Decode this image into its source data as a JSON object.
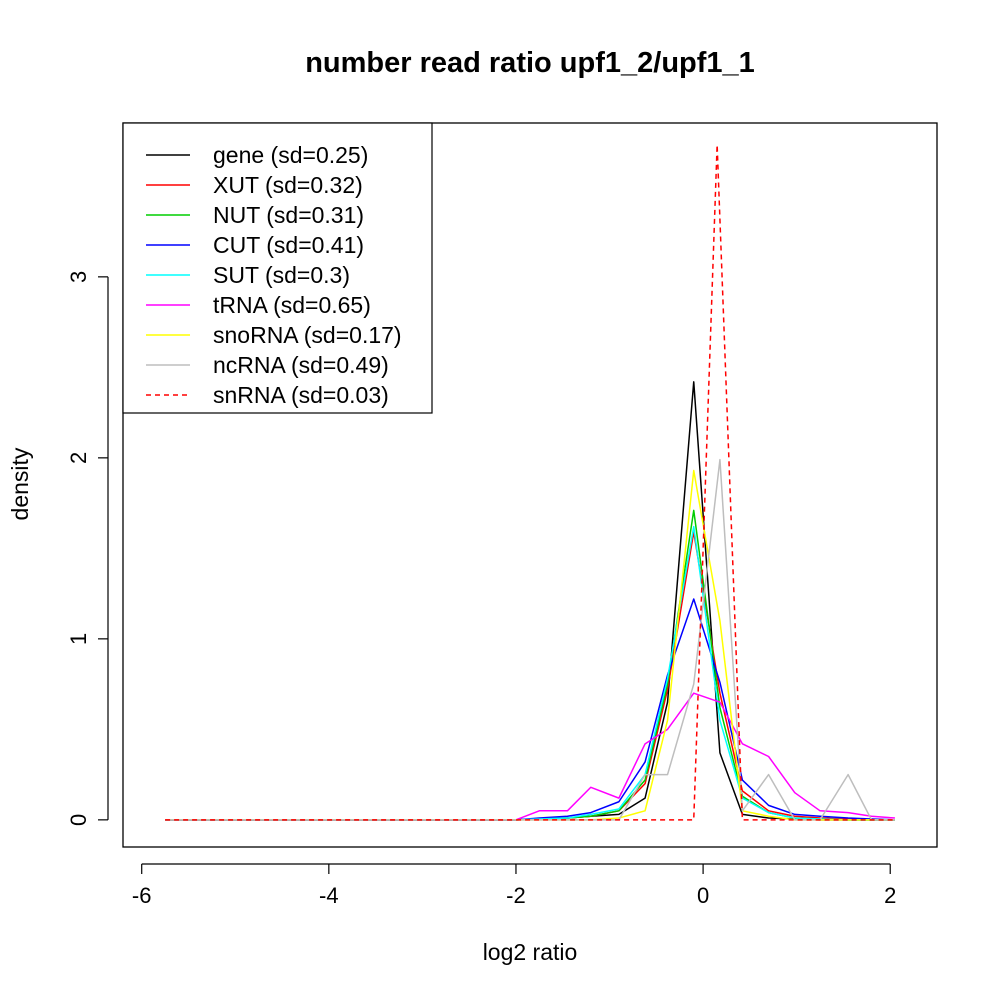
{
  "chart_data": {
    "type": "line",
    "title": "number read ratio upf1_2/upf1_1",
    "xlabel": "log2 ratio",
    "ylabel": "density",
    "xlim": [
      -6.2,
      2.5
    ],
    "ylim": [
      -0.15,
      3.85
    ],
    "xticks": [
      -6,
      -4,
      -2,
      0,
      2
    ],
    "xtick_labels": [
      "-6",
      "-4",
      "-2",
      "0",
      "2"
    ],
    "yticks": [
      0,
      1,
      2,
      3
    ],
    "ytick_labels": [
      "0",
      "1",
      "2",
      "3"
    ],
    "legend_position": "top-left",
    "grid": false,
    "series": [
      {
        "name": "gene",
        "label": "gene (sd=0.25)",
        "color": "#000000",
        "dashed": false,
        "x": [
          -5.75,
          -2.0,
          -1.75,
          -1.45,
          -1.2,
          -0.9,
          -0.62,
          -0.38,
          -0.1,
          0.18,
          0.42,
          0.7,
          0.98,
          1.25,
          1.55,
          1.8,
          2.05
        ],
        "y": [
          0,
          0,
          0.005,
          0.01,
          0.02,
          0.03,
          0.12,
          0.65,
          2.42,
          0.37,
          0.03,
          0.01,
          0.005,
          0,
          0,
          0,
          0
        ]
      },
      {
        "name": "XUT",
        "label": "XUT (sd=0.32)",
        "color": "#ff0000",
        "dashed": false,
        "x": [
          -5.75,
          -2.0,
          -1.75,
          -1.45,
          -1.2,
          -0.9,
          -0.62,
          -0.38,
          -0.1,
          0.18,
          0.42,
          0.7,
          0.98,
          1.25,
          1.55,
          1.8,
          2.05
        ],
        "y": [
          0,
          0,
          0.005,
          0.01,
          0.02,
          0.05,
          0.2,
          0.72,
          1.59,
          0.7,
          0.16,
          0.05,
          0.02,
          0.01,
          0.005,
          0,
          0
        ]
      },
      {
        "name": "NUT",
        "label": "NUT (sd=0.31)",
        "color": "#00cd00",
        "dashed": false,
        "x": [
          -5.75,
          -2.0,
          -1.75,
          -1.45,
          -1.2,
          -0.9,
          -0.62,
          -0.38,
          -0.1,
          0.18,
          0.42,
          0.7,
          0.98,
          1.25,
          1.55,
          1.8,
          2.05
        ],
        "y": [
          0,
          0,
          0.005,
          0.01,
          0.02,
          0.05,
          0.22,
          0.75,
          1.71,
          0.62,
          0.13,
          0.04,
          0.01,
          0.005,
          0,
          0,
          0
        ]
      },
      {
        "name": "CUT",
        "label": "CUT (sd=0.41)",
        "color": "#0000ff",
        "dashed": false,
        "x": [
          -5.75,
          -2.0,
          -1.75,
          -1.45,
          -1.2,
          -0.9,
          -0.62,
          -0.38,
          -0.1,
          0.18,
          0.42,
          0.7,
          0.98,
          1.25,
          1.55,
          1.8,
          2.05
        ],
        "y": [
          0,
          0,
          0.01,
          0.02,
          0.04,
          0.1,
          0.32,
          0.8,
          1.22,
          0.76,
          0.22,
          0.08,
          0.03,
          0.02,
          0.01,
          0.005,
          0
        ]
      },
      {
        "name": "SUT",
        "label": "SUT (sd=0.3)",
        "color": "#00ffff",
        "dashed": false,
        "x": [
          -5.75,
          -2.0,
          -1.75,
          -1.45,
          -1.2,
          -0.9,
          -0.62,
          -0.38,
          -0.1,
          0.18,
          0.42,
          0.7,
          0.98,
          1.25,
          1.55,
          1.8,
          2.05
        ],
        "y": [
          0,
          0,
          0.005,
          0.01,
          0.03,
          0.06,
          0.25,
          0.78,
          1.62,
          0.55,
          0.12,
          0.04,
          0.01,
          0.005,
          0,
          0,
          0
        ]
      },
      {
        "name": "tRNA",
        "label": "tRNA (sd=0.65)",
        "color": "#ff00ff",
        "dashed": false,
        "x": [
          -5.75,
          -2.0,
          -1.75,
          -1.45,
          -1.2,
          -0.9,
          -0.62,
          -0.38,
          -0.1,
          0.18,
          0.42,
          0.7,
          0.98,
          1.25,
          1.55,
          1.8,
          2.05
        ],
        "y": [
          0,
          0,
          0.05,
          0.05,
          0.18,
          0.12,
          0.42,
          0.5,
          0.7,
          0.65,
          0.42,
          0.35,
          0.15,
          0.05,
          0.04,
          0.02,
          0.01
        ]
      },
      {
        "name": "snoRNA",
        "label": "snoRNA (sd=0.17)",
        "color": "#ffff00",
        "dashed": false,
        "x": [
          -5.75,
          -2.0,
          -1.75,
          -1.45,
          -1.2,
          -0.9,
          -0.62,
          -0.38,
          -0.1,
          0.18,
          0.42,
          0.7,
          0.98,
          1.25,
          1.55,
          1.8,
          2.05
        ],
        "y": [
          0,
          0,
          0,
          0,
          0,
          0.01,
          0.05,
          0.55,
          1.93,
          1.1,
          0.05,
          0.02,
          0,
          0,
          0,
          0,
          0
        ]
      },
      {
        "name": "ncRNA",
        "label": "ncRNA (sd=0.49)",
        "color": "#bebebe",
        "dashed": false,
        "x": [
          -5.75,
          -2.0,
          -1.75,
          -1.45,
          -1.2,
          -0.9,
          -0.62,
          -0.38,
          -0.1,
          0.18,
          0.42,
          0.7,
          0.98,
          1.25,
          1.55,
          1.8,
          2.05
        ],
        "y": [
          0,
          0,
          0,
          0,
          0,
          0,
          0.25,
          0.25,
          0.75,
          1.99,
          0.05,
          0.25,
          0,
          0,
          0.25,
          0,
          0
        ]
      },
      {
        "name": "snRNA",
        "label": "snRNA (sd=0.03)",
        "color": "#ff0000",
        "dashed": true,
        "x": [
          -5.75,
          -2.0,
          -1.75,
          -1.45,
          -1.2,
          -0.9,
          -0.62,
          -0.38,
          -0.1,
          0.15,
          0.42,
          0.7,
          0.98,
          1.25,
          1.55,
          1.8,
          2.05
        ],
        "y": [
          0,
          0,
          0,
          0,
          0,
          0,
          0,
          0,
          0,
          3.73,
          0,
          0,
          0,
          0,
          0,
          0,
          0
        ]
      }
    ]
  }
}
